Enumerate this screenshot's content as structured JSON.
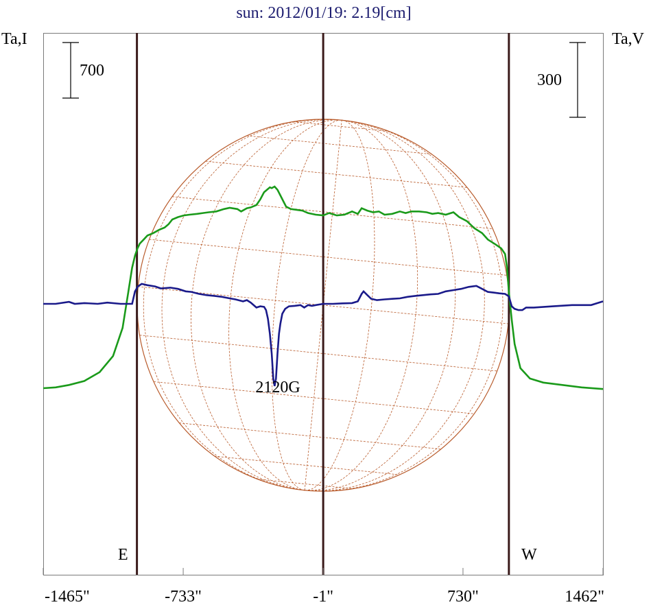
{
  "chart_data": {
    "type": "line",
    "title": "sun: 2012/01/19: 2.19[cm]",
    "left_axis_label": "Ta,I",
    "right_axis_label": "Ta,V",
    "left_scale_label": "700",
    "right_scale_label": "300",
    "x_ticks": [
      "-1465\"",
      "-733\"",
      "-1\"",
      "730\"",
      "1462\""
    ],
    "x_tick_values": [
      -1465,
      -733,
      -1,
      730,
      1462
    ],
    "xlim": [
      -1465,
      1462
    ],
    "limb_lines": [
      -975,
      -1,
      970
    ],
    "limb_labels": {
      "east": "E",
      "west": "W"
    },
    "annotation": "2120G",
    "annotation_at": -249,
    "grid": false,
    "colors": {
      "title": "#1a1a6e",
      "intensity": "#1a9a1a",
      "polarization": "#1a1a8a",
      "limb": "#3a1a1a",
      "disk": "#b85a2a"
    },
    "series": [
      {
        "color": "intensity",
        "x": [
          -1465,
          -1400,
          -1330,
          -1250,
          -1170,
          -1100,
          -1050,
          -1020,
          -1000,
          -985,
          -972,
          -960,
          -940,
          -920,
          -890,
          -860,
          -830,
          -810,
          -790,
          -760,
          -730,
          -700,
          -660,
          -630,
          -600,
          -560,
          -520,
          -490,
          -450,
          -430,
          -400,
          -380,
          -350,
          -330,
          -310,
          -290,
          -280,
          -270,
          -255,
          -240,
          -225,
          -210,
          -195,
          -170,
          -140,
          -110,
          -80,
          -40,
          -1,
          30,
          70,
          110,
          150,
          180,
          200,
          230,
          260,
          290,
          320,
          360,
          400,
          430,
          460,
          500,
          540,
          570,
          600,
          640,
          680,
          710,
          750,
          790,
          830,
          860,
          900,
          930,
          950,
          960,
          970,
          985,
          1000,
          1030,
          1080,
          1150,
          1250,
          1350,
          1462
        ],
        "values": [
          -1050,
          -1040,
          -1010,
          -960,
          -850,
          -650,
          -300,
          150,
          450,
          600,
          690,
          750,
          800,
          850,
          880,
          920,
          950,
          990,
          1050,
          1080,
          1100,
          1110,
          1120,
          1130,
          1140,
          1150,
          1180,
          1195,
          1180,
          1150,
          1190,
          1200,
          1230,
          1300,
          1390,
          1430,
          1450,
          1440,
          1460,
          1420,
          1350,
          1280,
          1210,
          1180,
          1170,
          1160,
          1130,
          1110,
          1100,
          1130,
          1100,
          1110,
          1150,
          1120,
          1190,
          1160,
          1140,
          1150,
          1110,
          1120,
          1150,
          1130,
          1150,
          1150,
          1140,
          1120,
          1130,
          1110,
          1140,
          1080,
          1030,
          940,
          880,
          800,
          740,
          690,
          620,
          450,
          150,
          -200,
          -500,
          -800,
          -930,
          -980,
          -1010,
          -1040,
          -1060
        ]
      },
      {
        "color": "polarization",
        "x": [
          -1465,
          -1400,
          -1330,
          -1300,
          -1250,
          -1180,
          -1130,
          -1060,
          -1000,
          -985,
          -970,
          -950,
          -920,
          -880,
          -850,
          -800,
          -760,
          -720,
          -690,
          -650,
          -610,
          -570,
          -530,
          -490,
          -460,
          -420,
          -400,
          -380,
          -350,
          -330,
          -310,
          -300,
          -290,
          -280,
          -270,
          -262,
          -255,
          -248,
          -240,
          -232,
          -225,
          -215,
          -200,
          -180,
          -150,
          -120,
          -100,
          -80,
          -60,
          -40,
          -1,
          50,
          100,
          150,
          180,
          200,
          210,
          230,
          250,
          280,
          320,
          360,
          400,
          440,
          480,
          520,
          560,
          600,
          640,
          680,
          720,
          760,
          800,
          830,
          860,
          890,
          920,
          950,
          970,
          985,
          1000,
          1020,
          1040,
          1060,
          1100,
          1200,
          1300,
          1400,
          1462
        ],
        "values": [
          0,
          0,
          8,
          0,
          3,
          0,
          5,
          0,
          0,
          50,
          70,
          80,
          75,
          70,
          62,
          65,
          60,
          50,
          48,
          40,
          35,
          32,
          28,
          22,
          18,
          10,
          15,
          5,
          -15,
          -10,
          -12,
          -25,
          -60,
          -120,
          -200,
          -300,
          -330,
          -300,
          -200,
          -120,
          -80,
          -40,
          -20,
          -10,
          -8,
          -5,
          -15,
          -5,
          -8,
          -5,
          0,
          0,
          2,
          3,
          10,
          40,
          50,
          35,
          20,
          15,
          18,
          20,
          22,
          28,
          32,
          35,
          38,
          40,
          50,
          55,
          60,
          68,
          72,
          60,
          48,
          45,
          42,
          40,
          30,
          -10,
          -20,
          -25,
          -25,
          -15,
          -15,
          -10,
          -5,
          -5,
          10
        ]
      }
    ]
  }
}
